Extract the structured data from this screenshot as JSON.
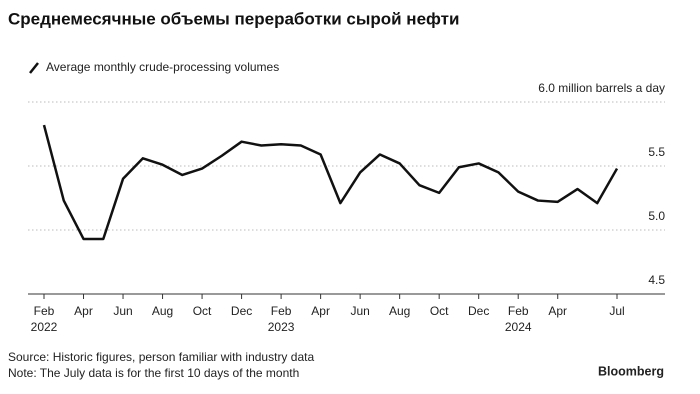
{
  "chart_data": {
    "type": "line",
    "title": "Среднемесячные объемы переработки сырой нефти",
    "series": [
      {
        "name": "Average monthly crude-processing volumes",
        "color": "#111111",
        "values": [
          5.82,
          5.23,
          4.93,
          4.93,
          5.4,
          5.56,
          5.51,
          5.43,
          5.48,
          5.58,
          5.69,
          5.66,
          5.67,
          5.66,
          5.59,
          5.21,
          5.45,
          5.59,
          5.52,
          5.35,
          5.29,
          5.49,
          5.52,
          5.45,
          5.3,
          5.23,
          5.22,
          5.32,
          5.21,
          5.48
        ]
      }
    ],
    "categories": [
      "Feb",
      null,
      "Apr",
      null,
      "Jun",
      null,
      "Aug",
      null,
      "Oct",
      null,
      "Dec",
      null,
      "Feb",
      null,
      "Apr",
      null,
      "Jun",
      null,
      "Aug",
      null,
      "Oct",
      null,
      "Dec",
      null,
      "Feb",
      null,
      "Apr",
      null,
      null,
      "Jul"
    ],
    "years": [
      "2022",
      "2023",
      "2024"
    ],
    "ylim": [
      4.5,
      6.0
    ],
    "yticks": [
      4.5,
      {
        "value": 5,
        "label": "5.0"
      },
      5.5,
      {
        "value": 6,
        "label": "6.0 million barrels a day"
      }
    ],
    "grid": true,
    "source": "Source: Historic figures, person familiar with industry data",
    "note": "Note: The July data is for the first 10 days of the month",
    "brand": "Bloomberg"
  }
}
